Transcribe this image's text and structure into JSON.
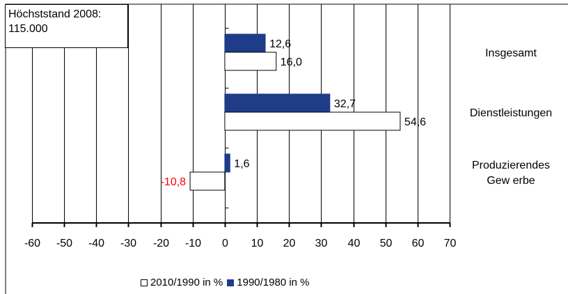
{
  "callout": {
    "line1": "Höchststand 2008:",
    "line2": "115.000"
  },
  "chart_data": {
    "type": "bar",
    "orientation": "horizontal",
    "categories": [
      [
        "Insgesamt"
      ],
      [
        "Dienstleistungen"
      ],
      [
        "Produzierendes",
        "Gew erbe"
      ]
    ],
    "series": [
      {
        "name": "2010/1990 in %",
        "values": [
          16.0,
          54.6,
          -10.8
        ],
        "labels": [
          "16,0",
          "54,6",
          "-10,8"
        ],
        "color": "#ffffff",
        "label_colors": [
          "#000000",
          "#000000",
          "#ff0000"
        ]
      },
      {
        "name": "1990/1980 in %",
        "values": [
          12.6,
          32.7,
          1.6
        ],
        "labels": [
          "12,6",
          "32,7",
          "1,6"
        ],
        "color": "#1f3c88",
        "label_colors": [
          "#000000",
          "#000000",
          "#000000"
        ]
      }
    ],
    "xlim": [
      -60,
      70
    ],
    "xticks": [
      -60,
      -50,
      -40,
      -30,
      -20,
      -10,
      0,
      10,
      20,
      30,
      40,
      50,
      60,
      70
    ],
    "xtick_labels": [
      "-60",
      "-50",
      "-40",
      "-30",
      "-20",
      "-10",
      "0",
      "10",
      "20",
      "30",
      "40",
      "50",
      "60",
      "70"
    ],
    "grid": "vertical",
    "legend_position": "bottom"
  }
}
